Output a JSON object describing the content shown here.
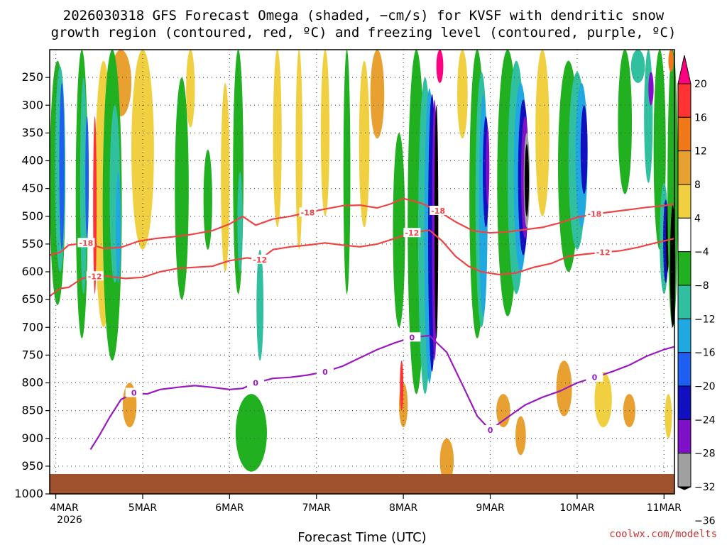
{
  "chart_data": {
    "type": "heatmap",
    "title_lines": [
      "2026030318 GFS Forecast Omega (shaded, −cm/s) for KVSF with dendritic snow",
      "growth region (contoured, red, ºC) and freezing level (contoured, purple, ºC)"
    ],
    "xlabel": "Forecast Time (UTC)",
    "ylabel": "",
    "credit": "coolwx.com/modelts",
    "x_ticks": [
      "4MAR",
      "5MAR",
      "6MAR",
      "7MAR",
      "8MAR",
      "9MAR",
      "10MAR",
      "11MAR"
    ],
    "x_sublabel": "2026",
    "x_range_days": [
      3.93,
      11.12
    ],
    "y_ticks": [
      250,
      300,
      350,
      400,
      450,
      500,
      550,
      600,
      650,
      700,
      750,
      800,
      850,
      900,
      950,
      1000
    ],
    "y_range_hpa": [
      200,
      1000
    ],
    "colorbar": {
      "labels": [
        "20",
        "16",
        "12",
        "8",
        "4",
        "−4",
        "−8",
        "−12",
        "−16",
        "−20",
        "−24",
        "−28",
        "−32",
        "−36"
      ],
      "colors": [
        "#ff0080",
        "#ff3333",
        "#f07818",
        "#e8a030",
        "#f0d040",
        "#ffffff",
        "#20b020",
        "#30c0a0",
        "#20a8e0",
        "#1e5ef0",
        "#1010c0",
        "#8010c8",
        "#a0a0a0",
        "#000000"
      ]
    },
    "contours": {
      "dgz_upper": {
        "label": "-18",
        "color": "#ee4444",
        "points": [
          [
            3.93,
            570
          ],
          [
            4.05,
            565
          ],
          [
            4.15,
            552
          ],
          [
            4.35,
            548
          ],
          [
            4.55,
            558
          ],
          [
            4.75,
            556
          ],
          [
            4.95,
            545
          ],
          [
            5.15,
            540
          ],
          [
            5.35,
            537
          ],
          [
            5.55,
            533
          ],
          [
            5.8,
            526
          ],
          [
            6.0,
            514
          ],
          [
            6.15,
            500
          ],
          [
            6.3,
            516
          ],
          [
            6.5,
            505
          ],
          [
            6.7,
            500
          ],
          [
            6.9,
            493
          ],
          [
            7.1,
            487
          ],
          [
            7.3,
            481
          ],
          [
            7.5,
            480
          ],
          [
            7.7,
            485
          ],
          [
            7.85,
            478
          ],
          [
            8.0,
            468
          ],
          [
            8.2,
            476
          ],
          [
            8.4,
            490
          ],
          [
            8.6,
            510
          ],
          [
            8.8,
            526
          ],
          [
            9.0,
            530
          ],
          [
            9.2,
            528
          ],
          [
            9.4,
            524
          ],
          [
            9.6,
            520
          ],
          [
            9.8,
            512
          ],
          [
            10.0,
            502
          ],
          [
            10.2,
            496
          ],
          [
            10.4,
            492
          ],
          [
            10.6,
            488
          ],
          [
            10.8,
            484
          ],
          [
            11.0,
            481
          ],
          [
            11.12,
            478
          ]
        ]
      },
      "dgz_lower": {
        "label": "-12",
        "color": "#ee4444",
        "points": [
          [
            3.93,
            644
          ],
          [
            4.05,
            630
          ],
          [
            4.15,
            628
          ],
          [
            4.3,
            612
          ],
          [
            4.45,
            608
          ],
          [
            4.6,
            608
          ],
          [
            4.8,
            612
          ],
          [
            5.0,
            610
          ],
          [
            5.2,
            600
          ],
          [
            5.4,
            594
          ],
          [
            5.6,
            592
          ],
          [
            5.8,
            590
          ],
          [
            6.0,
            580
          ],
          [
            6.2,
            575
          ],
          [
            6.35,
            578
          ],
          [
            6.5,
            560
          ],
          [
            6.7,
            555
          ],
          [
            6.9,
            552
          ],
          [
            7.1,
            548
          ],
          [
            7.3,
            552
          ],
          [
            7.5,
            555
          ],
          [
            7.7,
            550
          ],
          [
            7.9,
            540
          ],
          [
            8.1,
            530
          ],
          [
            8.3,
            525
          ],
          [
            8.45,
            545
          ],
          [
            8.6,
            572
          ],
          [
            8.75,
            590
          ],
          [
            8.9,
            600
          ],
          [
            9.1,
            605
          ],
          [
            9.3,
            602
          ],
          [
            9.5,
            592
          ],
          [
            9.7,
            585
          ],
          [
            9.9,
            572
          ],
          [
            10.1,
            568
          ],
          [
            10.3,
            565
          ],
          [
            10.5,
            562
          ],
          [
            10.7,
            556
          ],
          [
            10.9,
            548
          ],
          [
            11.12,
            540
          ]
        ]
      },
      "freezing": {
        "label": "0",
        "color": "#9a1ac0",
        "points": [
          [
            4.4,
            920
          ],
          [
            4.5,
            895
          ],
          [
            4.62,
            862
          ],
          [
            4.75,
            830
          ],
          [
            4.9,
            818
          ],
          [
            5.05,
            820
          ],
          [
            5.2,
            812
          ],
          [
            5.4,
            808
          ],
          [
            5.6,
            805
          ],
          [
            5.8,
            808
          ],
          [
            6.0,
            812
          ],
          [
            6.15,
            810
          ],
          [
            6.3,
            800
          ],
          [
            6.5,
            792
          ],
          [
            6.7,
            790
          ],
          [
            6.9,
            786
          ],
          [
            7.1,
            780
          ],
          [
            7.3,
            770
          ],
          [
            7.5,
            755
          ],
          [
            7.7,
            740
          ],
          [
            7.9,
            728
          ],
          [
            8.1,
            718
          ],
          [
            8.3,
            715
          ],
          [
            8.5,
            745
          ],
          [
            8.7,
            810
          ],
          [
            8.85,
            860
          ],
          [
            9.0,
            885
          ],
          [
            9.2,
            862
          ],
          [
            9.4,
            840
          ],
          [
            9.6,
            826
          ],
          [
            9.8,
            815
          ],
          [
            10.0,
            800
          ],
          [
            10.2,
            790
          ],
          [
            10.4,
            780
          ],
          [
            10.6,
            768
          ],
          [
            10.8,
            752
          ],
          [
            11.0,
            740
          ],
          [
            11.12,
            735
          ]
        ]
      }
    }
  }
}
